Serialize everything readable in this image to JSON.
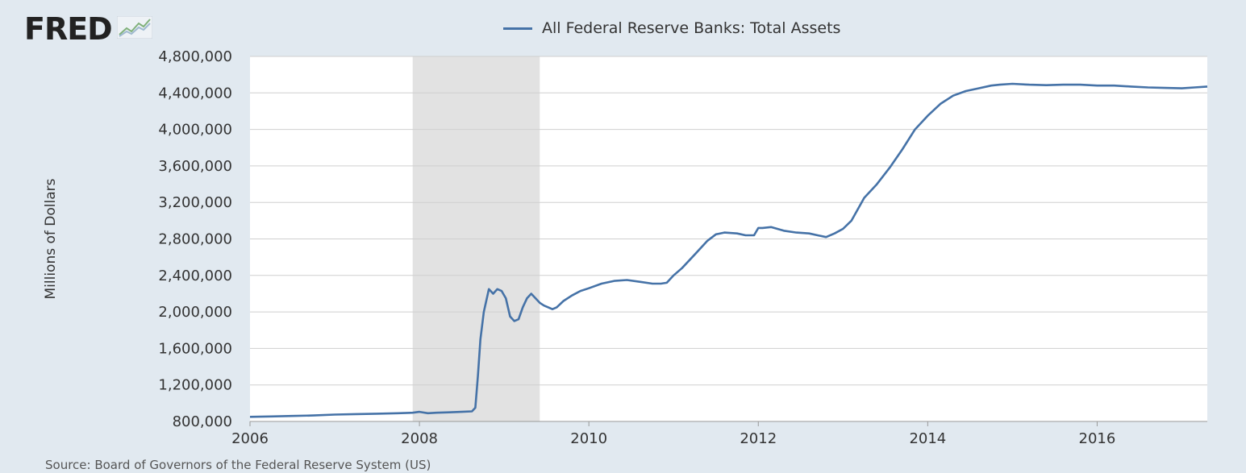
{
  "header": {
    "logo_text": "FRED",
    "logo_icon": "line-graph-icon"
  },
  "footer": {
    "source": "Source: Board of Governors of the Federal Reserve System (US)"
  },
  "colors": {
    "background": "#e1e9f0",
    "plot_background": "#ffffff",
    "series": "#4572a7",
    "recession_shade": "#e2e2e2",
    "grid": "#cfcfcf"
  },
  "chart_data": {
    "type": "line",
    "title": "",
    "xlabel": "",
    "ylabel": "Millions of Dollars",
    "xlim": [
      2006.0,
      2017.3
    ],
    "ylim": [
      800000,
      4800000
    ],
    "x_ticks": [
      2006,
      2008,
      2010,
      2012,
      2014,
      2016
    ],
    "x_tick_labels": [
      "2006",
      "2008",
      "2010",
      "2012",
      "2014",
      "2016"
    ],
    "y_ticks": [
      800000,
      1200000,
      1600000,
      2000000,
      2400000,
      2800000,
      3200000,
      3600000,
      4000000,
      4400000,
      4800000
    ],
    "y_tick_labels": [
      "800,000",
      "1,200,000",
      "1,600,000",
      "2,000,000",
      "2,400,000",
      "2,800,000",
      "3,200,000",
      "3,600,000",
      "4,000,000",
      "4,400,000",
      "4,800,000"
    ],
    "grid": true,
    "legend": "top-center",
    "recession_shading": [
      {
        "start": 2007.92,
        "end": 2009.42
      }
    ],
    "series": [
      {
        "name": "All Federal Reserve Banks: Total Assets",
        "x": [
          2006.0,
          2006.25,
          2006.5,
          2006.75,
          2007.0,
          2007.25,
          2007.5,
          2007.75,
          2007.92,
          2008.0,
          2008.1,
          2008.2,
          2008.35,
          2008.5,
          2008.62,
          2008.66,
          2008.69,
          2008.72,
          2008.76,
          2008.82,
          2008.87,
          2008.92,
          2008.97,
          2009.02,
          2009.07,
          2009.12,
          2009.17,
          2009.22,
          2009.27,
          2009.32,
          2009.37,
          2009.42,
          2009.47,
          2009.52,
          2009.57,
          2009.62,
          2009.7,
          2009.8,
          2009.9,
          2010.0,
          2010.15,
          2010.3,
          2010.45,
          2010.6,
          2010.75,
          2010.85,
          2010.92,
          2011.0,
          2011.1,
          2011.25,
          2011.4,
          2011.5,
          2011.6,
          2011.75,
          2011.85,
          2011.95,
          2012.0,
          2012.05,
          2012.15,
          2012.3,
          2012.45,
          2012.6,
          2012.7,
          2012.8,
          2012.9,
          2013.0,
          2013.1,
          2013.25,
          2013.4,
          2013.55,
          2013.7,
          2013.85,
          2014.0,
          2014.15,
          2014.3,
          2014.45,
          2014.6,
          2014.75,
          2014.85,
          2015.0,
          2015.2,
          2015.4,
          2015.6,
          2015.8,
          2016.0,
          2016.2,
          2016.4,
          2016.6,
          2016.8,
          2017.0,
          2017.15,
          2017.3
        ],
        "y": [
          850000,
          855000,
          860000,
          865000,
          875000,
          880000,
          885000,
          890000,
          895000,
          905000,
          890000,
          895000,
          900000,
          905000,
          910000,
          950000,
          1300000,
          1700000,
          2000000,
          2250000,
          2200000,
          2250000,
          2230000,
          2150000,
          1950000,
          1900000,
          1920000,
          2050000,
          2150000,
          2200000,
          2150000,
          2100000,
          2070000,
          2050000,
          2030000,
          2050000,
          2120000,
          2180000,
          2230000,
          2260000,
          2310000,
          2340000,
          2350000,
          2330000,
          2310000,
          2310000,
          2320000,
          2400000,
          2480000,
          2630000,
          2780000,
          2850000,
          2870000,
          2860000,
          2840000,
          2840000,
          2920000,
          2920000,
          2930000,
          2890000,
          2870000,
          2860000,
          2840000,
          2820000,
          2860000,
          2910000,
          3000000,
          3250000,
          3400000,
          3580000,
          3780000,
          4000000,
          4150000,
          4280000,
          4370000,
          4420000,
          4450000,
          4480000,
          4490000,
          4500000,
          4490000,
          4485000,
          4490000,
          4490000,
          4480000,
          4480000,
          4470000,
          4460000,
          4455000,
          4450000,
          4460000,
          4470000
        ]
      }
    ]
  }
}
